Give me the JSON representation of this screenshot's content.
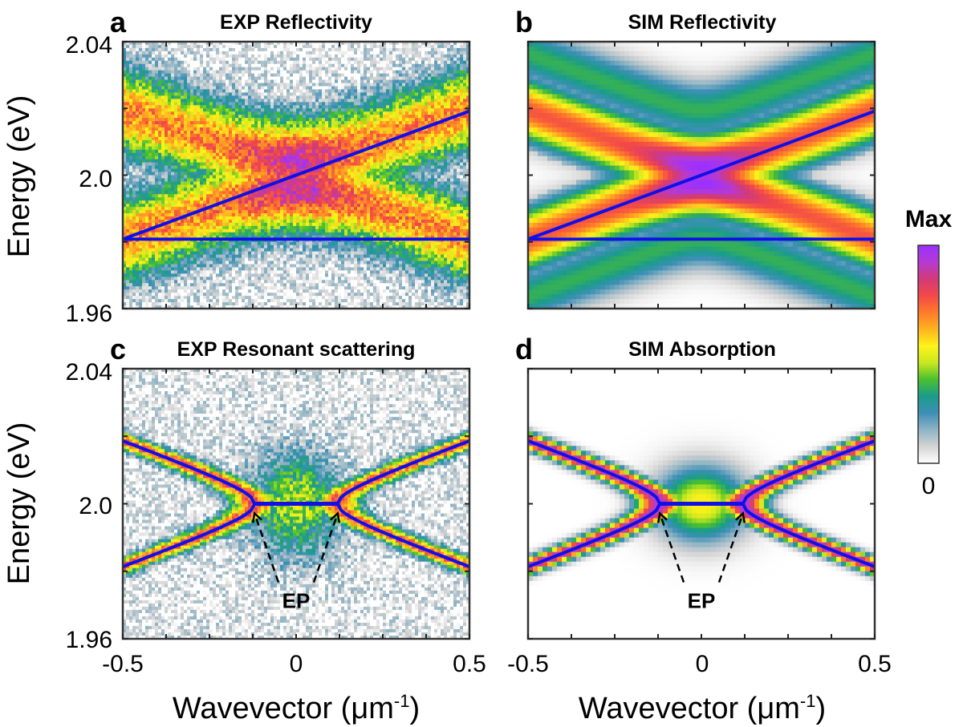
{
  "chart_data": [
    {
      "type": "heatmap",
      "panel_letter": "a",
      "title": "EXP Reflectivity",
      "kind": "exp-crossing",
      "x_range": [
        -0.5,
        0.5
      ],
      "y_range": [
        1.96,
        2.04
      ],
      "overlay": {
        "type": "crossing",
        "center_energy": 2.0,
        "slope_eV_per_um_inv": 0.0384
      },
      "ep_annotation": null
    },
    {
      "type": "heatmap",
      "panel_letter": "b",
      "title": "SIM Reflectivity",
      "kind": "sim-crossing",
      "x_range": [
        -0.5,
        0.5
      ],
      "y_range": [
        1.96,
        2.04
      ],
      "overlay": {
        "type": "crossing",
        "center_energy": 2.0,
        "slope_eV_per_um_inv": 0.0384
      },
      "ep_annotation": null
    },
    {
      "type": "heatmap",
      "panel_letter": "c",
      "title": "EXP Resonant scattering",
      "kind": "exp-ep",
      "x_range": [
        -0.5,
        0.5
      ],
      "y_range": [
        1.96,
        2.04
      ],
      "overlay": {
        "type": "exceptional-point",
        "center_energy": 2.0,
        "ep_wavevector": 0.12,
        "slope_eV_per_um_inv": 0.0384
      },
      "ep_annotation": {
        "label": "EP",
        "points": [
          -0.12,
          0.12
        ]
      }
    },
    {
      "type": "heatmap",
      "panel_letter": "d",
      "title": "SIM Absorption",
      "kind": "sim-ep",
      "x_range": [
        -0.5,
        0.5
      ],
      "y_range": [
        1.96,
        2.04
      ],
      "overlay": {
        "type": "exceptional-point",
        "center_energy": 2.0,
        "ep_wavevector": 0.12,
        "slope_eV_per_um_inv": 0.0384
      },
      "ep_annotation": {
        "label": "EP",
        "points": [
          -0.12,
          0.12
        ]
      }
    }
  ],
  "axes": {
    "xlabel": "Wavevector (μm",
    "xlabel_sup": "-1",
    "xlabel_close": ")",
    "ylabel": "Energy (eV)",
    "x_tick_labels": [
      "-0.5",
      "0",
      "0.5"
    ],
    "y_tick_labels": [
      "2.04",
      "2.0",
      "1.96"
    ]
  },
  "colorbar": {
    "max_label": "Max",
    "min_label": "0",
    "colors": [
      "#ffffff",
      "#d4d4d4",
      "#8fb3c4",
      "#3d8fb6",
      "#1a9c8a",
      "#4bc02e",
      "#c9e81f",
      "#fff21a",
      "#ffb320",
      "#ff7a2a",
      "#f24848",
      "#d23a78",
      "#b43ad4",
      "#9b30ff"
    ]
  },
  "colors": {
    "overlay_line": "#1010e6",
    "frame": "#333333"
  }
}
